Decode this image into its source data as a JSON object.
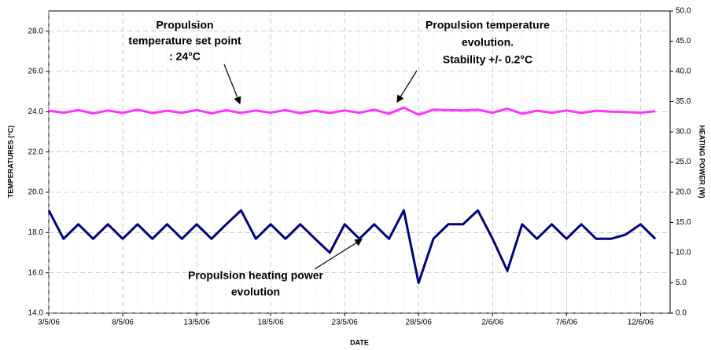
{
  "chart_data": {
    "type": "line",
    "x_label": "DATE",
    "y_label": "TEMPERATURES (°C)",
    "y2_label": "HEATING POWER (W)",
    "x": [
      "3/5/06",
      "4/5/06",
      "5/5/06",
      "6/5/06",
      "7/5/06",
      "8/5/06",
      "9/5/06",
      "10/5/06",
      "11/5/06",
      "12/5/06",
      "13/5/06",
      "14/5/06",
      "15/5/06",
      "16/5/06",
      "17/5/06",
      "18/5/06",
      "19/5/06",
      "20/5/06",
      "21/5/06",
      "22/5/06",
      "23/5/06",
      "24/5/06",
      "25/5/06",
      "26/5/06",
      "27/5/06",
      "28/5/06",
      "29/5/06",
      "30/5/06",
      "31/5/06",
      "1/6/06",
      "2/6/06",
      "3/6/06",
      "4/6/06",
      "5/6/06",
      "6/6/06",
      "7/6/06",
      "8/6/06",
      "9/6/06",
      "10/6/06",
      "11/6/06",
      "12/6/06",
      "13/6/06"
    ],
    "series": [
      {
        "name": "Propulsion temperature",
        "color": "#ff33ff",
        "axis": "y",
        "values": [
          24.05,
          23.95,
          24.08,
          23.92,
          24.06,
          23.94,
          24.1,
          23.93,
          24.05,
          23.95,
          24.08,
          23.92,
          24.07,
          23.94,
          24.06,
          23.95,
          24.08,
          23.93,
          24.05,
          23.94,
          24.06,
          23.95,
          24.1,
          23.9,
          24.2,
          23.85,
          24.1,
          24.08,
          24.06,
          24.1,
          23.95,
          24.15,
          23.9,
          24.05,
          23.95,
          24.06,
          23.94,
          24.05,
          24.0,
          23.98,
          23.95,
          24.02
        ]
      },
      {
        "name": "Propulsion heating power",
        "color": "#000080",
        "axis": "y2",
        "values": [
          17.0,
          12.3,
          14.7,
          12.3,
          14.7,
          12.3,
          14.7,
          12.3,
          14.7,
          12.3,
          14.7,
          12.3,
          14.7,
          17.0,
          12.3,
          14.7,
          12.3,
          14.7,
          12.3,
          10.0,
          14.7,
          12.3,
          14.7,
          12.3,
          17.0,
          5.0,
          12.3,
          14.7,
          14.7,
          17.0,
          12.3,
          7.0,
          14.7,
          12.3,
          14.7,
          12.3,
          14.7,
          12.3,
          12.3,
          13.0,
          14.7,
          12.3
        ]
      }
    ],
    "xlim": [
      "3/5/06",
      "14/6/06"
    ],
    "xticks": [
      "3/5/06",
      "8/5/06",
      "13/5/06",
      "18/5/06",
      "23/5/06",
      "28/5/06",
      "2/6/06",
      "7/6/06",
      "12/6/06"
    ],
    "ylim": [
      14,
      29
    ],
    "yticks": [
      {
        "value": 14,
        "label": "14.0"
      },
      {
        "value": 16,
        "label": "16.0"
      },
      {
        "value": 18,
        "label": "18.0"
      },
      {
        "value": 20,
        "label": "20.0"
      },
      {
        "value": 22,
        "label": "22.0"
      },
      {
        "value": 24,
        "label": "24.0"
      },
      {
        "value": 26,
        "label": "26.0"
      },
      {
        "value": 28,
        "label": "28.0"
      }
    ],
    "y2lim": [
      0,
      50
    ],
    "y2ticks": [
      {
        "value": 0,
        "label": "0.0"
      },
      {
        "value": 5,
        "label": "5.0"
      },
      {
        "value": 10,
        "label": "10.0"
      },
      {
        "value": 15,
        "label": "15.0"
      },
      {
        "value": 20,
        "label": "20.0"
      },
      {
        "value": 25,
        "label": "25.0"
      },
      {
        "value": 30,
        "label": "30.0"
      },
      {
        "value": 35,
        "label": "35.0"
      },
      {
        "value": 40,
        "label": "40.0"
      },
      {
        "value": 45,
        "label": "45.0"
      },
      {
        "value": 50,
        "label": "50.0"
      }
    ],
    "grid": true,
    "annotations": [
      {
        "lines": [
          "Propulsion",
          "temperature set point",
          ": 24°C"
        ]
      },
      {
        "lines": [
          "Propulsion temperature",
          "evolution.",
          "Stability +/- 0.2°C"
        ]
      },
      {
        "lines": [
          "Propulsion heating power",
          "evolution"
        ]
      }
    ]
  }
}
